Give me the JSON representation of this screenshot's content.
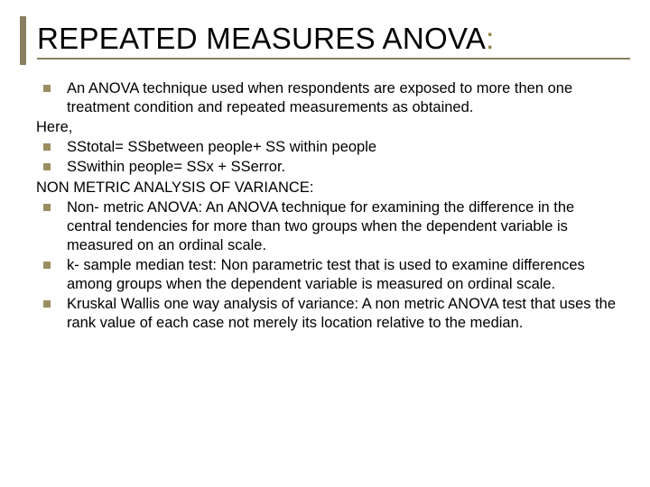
{
  "slide": {
    "title_text": "REPEATED MEASURES ANOVA",
    "title_colon": ":",
    "accent_color": "#888060",
    "bullet_color": "#9a8e60",
    "text_color": "#000000",
    "background_color": "#ffffff",
    "title_fontsize": 33,
    "body_fontsize": 16.5,
    "items": [
      {
        "type": "bullet",
        "text": "An ANOVA technique used when respondents are exposed to more then one treatment condition and repeated measurements as obtained."
      },
      {
        "type": "plain",
        "text": "Here,"
      },
      {
        "type": "bullet",
        "text": "SStotal= SSbetween people+ SS within people"
      },
      {
        "type": "bullet",
        "text": "SSwithin people= SSx + SSerror."
      },
      {
        "type": "plain",
        "text": "NON METRIC ANALYSIS OF VARIANCE:"
      },
      {
        "type": "bullet",
        "text": "Non- metric ANOVA: An ANOVA technique for examining the difference in the central tendencies for more than two groups when the dependent variable is measured on an ordinal scale."
      },
      {
        "type": "bullet",
        "text": "k- sample median test: Non parametric test that is used to examine differences among groups when the dependent variable is measured on ordinal scale."
      },
      {
        "type": "bullet",
        "text": "Kruskal Wallis one way analysis of variance: A non metric ANOVA test that uses the rank value of each case not merely its location relative to the median."
      }
    ]
  }
}
